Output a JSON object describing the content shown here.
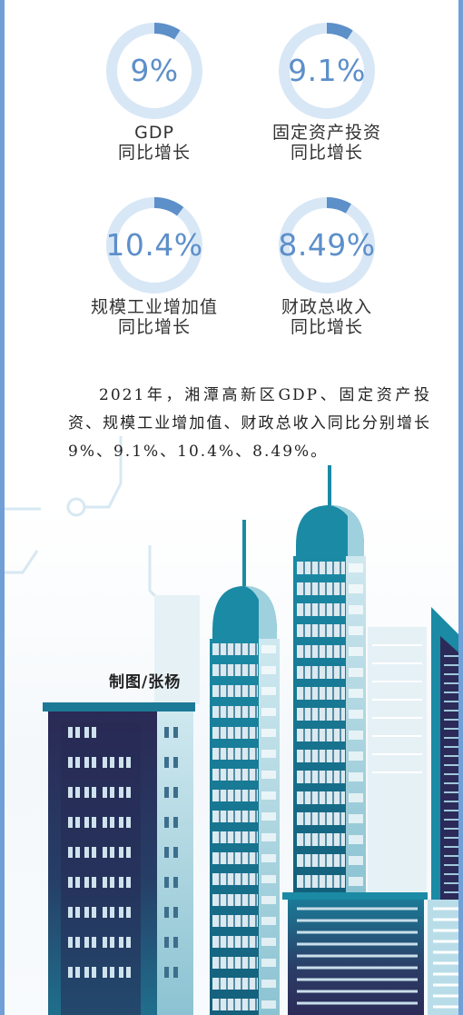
{
  "stats": [
    {
      "value": "9%",
      "label_line1": "GDP",
      "label_line2": "同比增长",
      "fraction": 0.09
    },
    {
      "value": "9.1%",
      "label_line1": "固定资产投资",
      "label_line2": "同比增长",
      "fraction": 0.091
    },
    {
      "value": "10.4%",
      "label_line1": "规模工业增加值",
      "label_line2": "同比增长",
      "fraction": 0.104
    },
    {
      "value": "8.49%",
      "label_line1": "财政总收入",
      "label_line2": "同比增长",
      "fraction": 0.0849
    }
  ],
  "summary": "2021年，湘潭高新区GDP、固定资产投资、规模工业增加值、财政总收入同比分别增长9%、9.1%、10.4%、8.49%。",
  "credit": "制图/张杨",
  "colors": {
    "frame": "#6f9fd6",
    "ring_track": "#d8e7f6",
    "ring_fill": "#5d8fc9",
    "value_text": "#5d8fc9",
    "building_teal": "#1b7794",
    "building_dark": "#2e2c5c",
    "building_light": "#b5dbe5"
  }
}
